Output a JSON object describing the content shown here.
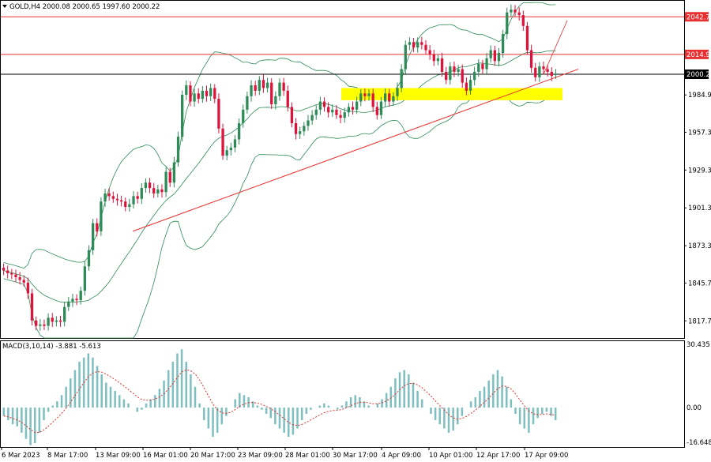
{
  "header": {
    "symbol_line": "GOLD,H4  2000.08 2000.65 1997.60 2000.22",
    "macd_label": "MACD(3,10,14) -3.881 -5.613"
  },
  "chart_data": [
    {
      "type": "candlestick",
      "title": "GOLD,H4",
      "ohlc_current": {
        "open": 2000.08,
        "high": 2000.65,
        "low": 1997.6,
        "close": 2000.22
      },
      "ylim": [
        1805,
        2054
      ],
      "y_ticks": [
        "2042.74",
        "2014.90",
        "2000.22",
        "1984.90",
        "1957.30",
        "1929.30",
        "1901.30",
        "1873.30",
        "1845.70",
        "1817.70"
      ],
      "x_ticks": [
        "6 Mar 2023",
        "8 Mar 17:00",
        "13 Mar 09:00",
        "16 Mar 01:00",
        "20 Mar 17:00",
        "23 Mar 09:00",
        "28 Mar 01:00",
        "30 Mar 17:00",
        "4 Apr 09:00",
        "10 Apr 01:00",
        "12 Apr 17:00",
        "17 Apr 09:00"
      ],
      "horizontal_levels": [
        {
          "value": 2042.74,
          "color": "#e83030"
        },
        {
          "value": 2014.9,
          "color": "#e83030"
        },
        {
          "value": 2000.22,
          "color": "#000000"
        }
      ],
      "support_zone": {
        "from": 1981,
        "to": 1990,
        "color": "#ffff00"
      },
      "trendline": {
        "color": "#e83030"
      },
      "indicator": "Bollinger Bands",
      "indicator_color": "#2e8b57",
      "colors": {
        "up": "#2e8b57",
        "down": "#dc143c"
      },
      "closes": [
        1855,
        1853,
        1852,
        1850,
        1848,
        1846,
        1838,
        1818,
        1814,
        1815,
        1814,
        1820,
        1817,
        1818,
        1817,
        1828,
        1832,
        1834,
        1833,
        1840,
        1858,
        1870,
        1890,
        1884,
        1906,
        1912,
        1910,
        1908,
        1907,
        1906,
        1902,
        1904,
        1910,
        1908,
        1916,
        1920,
        1916,
        1912,
        1915,
        1913,
        1928,
        1920,
        1935,
        1954,
        1985,
        1992,
        1980,
        1986,
        1982,
        1988,
        1984,
        1990,
        1982,
        1960,
        1940,
        1944,
        1946,
        1952,
        1964,
        1974,
        1984,
        1992,
        1988,
        1996,
        1990,
        1994,
        1978,
        1984,
        1994,
        1988,
        1976,
        1964,
        1956,
        1958,
        1962,
        1966,
        1970,
        1974,
        1980,
        1976,
        1972,
        1974,
        1970,
        1968,
        1972,
        1976,
        1974,
        1980,
        1986,
        1984,
        1986,
        1976,
        1970,
        1980,
        1986,
        1980,
        1984,
        1990,
        2004,
        2022,
        2024,
        2020,
        2024,
        2022,
        2018,
        2015,
        2010,
        2012,
        2002,
        1996,
        2006,
        2002,
        2004,
        1994,
        1988,
        1996,
        2002,
        2008,
        2004,
        2012,
        2018,
        2010,
        2016,
        2030,
        2046,
        2048,
        2046,
        2044,
        2036,
        2018,
        2005,
        1998,
        2006,
        2004,
        2002,
        1999,
        2000.22
      ]
    },
    {
      "type": "bar",
      "title": "MACD(3,10,14)",
      "values_current": {
        "macd": -3.881,
        "signal": -5.613
      },
      "ylim": [
        -18.5,
        31.5
      ],
      "y_ticks": [
        "30.435",
        "0.00",
        "-16.648"
      ],
      "histogram_color": "#7fbfbf",
      "signal_color": "#e03030",
      "histogram": [
        -4,
        -6,
        -8,
        -9,
        -12,
        -15,
        -18,
        -17,
        -12,
        -6,
        -2,
        1,
        3,
        6,
        10,
        14,
        18,
        22,
        24,
        26,
        24,
        20,
        16,
        12,
        10,
        8,
        6,
        4,
        2,
        0,
        -2,
        -1,
        2,
        4,
        6,
        9,
        13,
        18,
        22,
        26,
        28,
        22,
        16,
        10,
        2,
        -6,
        -10,
        -14,
        -12,
        -8,
        -4,
        0,
        4,
        7,
        6,
        5,
        3,
        1,
        -1,
        -3,
        -5,
        -8,
        -10,
        -12,
        -14,
        -13,
        -10,
        -6,
        -3,
        -1,
        0,
        1,
        2,
        1,
        0,
        -1,
        1,
        3,
        5,
        6,
        5,
        3,
        1,
        0,
        2,
        4,
        7,
        10,
        14,
        17,
        18,
        16,
        12,
        8,
        4,
        0,
        -3,
        -6,
        -8,
        -10,
        -12,
        -11,
        -8,
        -4,
        0,
        3,
        5,
        8,
        10,
        13,
        16,
        18,
        15,
        10,
        4,
        -3,
        -8,
        -10,
        -12,
        -8,
        -5,
        -3,
        -2,
        -4,
        -6
      ]
    }
  ]
}
